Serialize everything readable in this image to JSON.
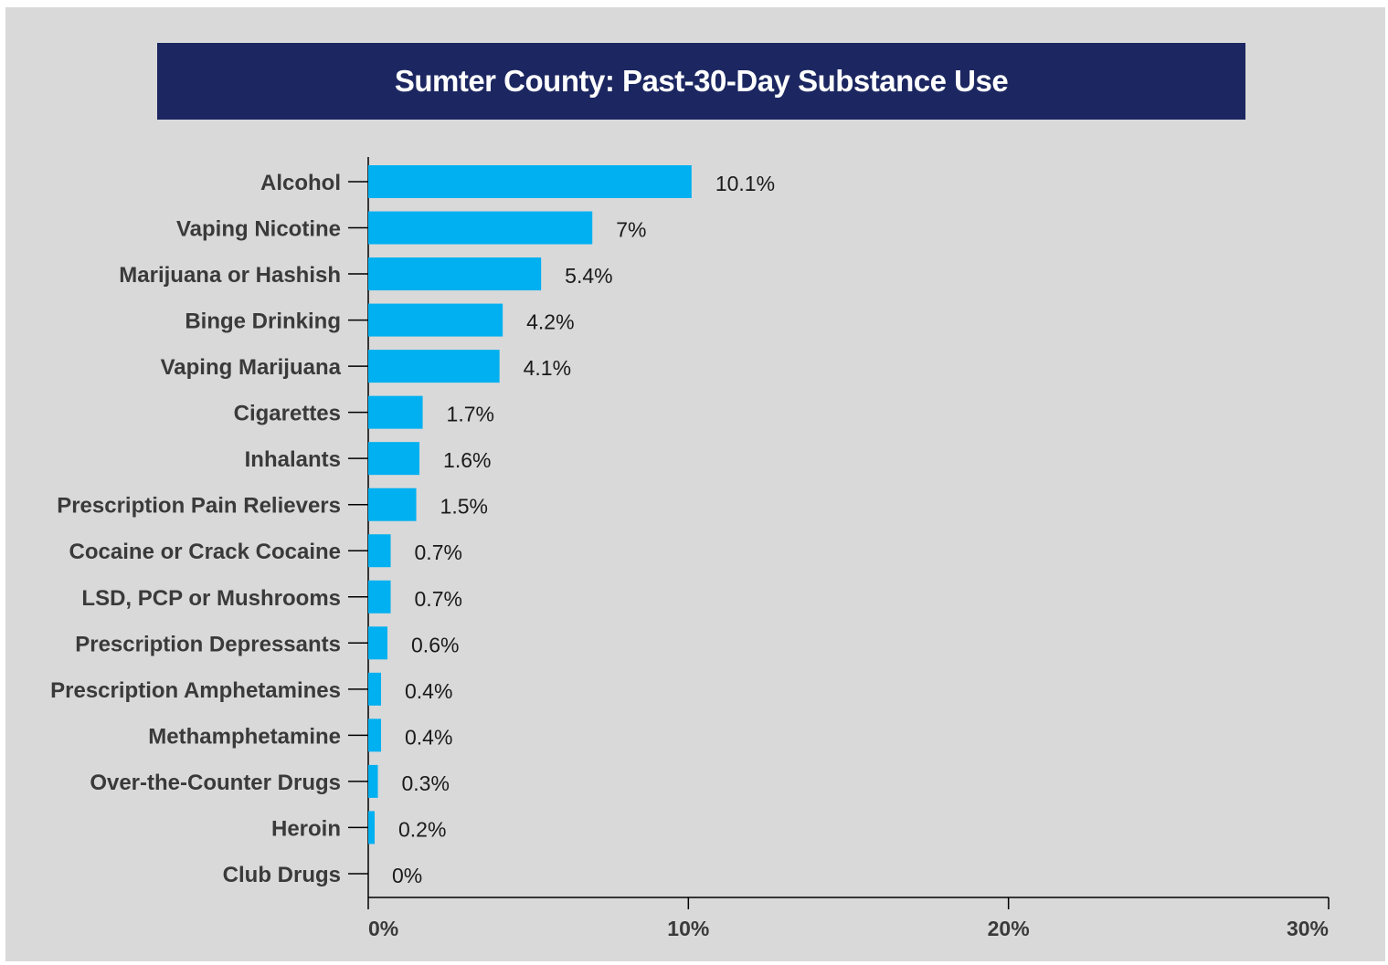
{
  "chart_data": {
    "type": "bar",
    "orientation": "horizontal",
    "title": "Sumter County: Past-30-Day Substance Use",
    "categories": [
      "Alcohol",
      "Vaping Nicotine",
      "Marijuana or Hashish",
      "Binge Drinking",
      "Vaping Marijuana",
      "Cigarettes",
      "Inhalants",
      "Prescription Pain Relievers",
      "Cocaine or Crack Cocaine",
      "LSD, PCP or Mushrooms",
      "Prescription Depressants",
      "Prescription Amphetamines",
      "Methamphetamine",
      "Over-the-Counter Drugs",
      "Heroin",
      "Club Drugs"
    ],
    "values": [
      10.1,
      7,
      5.4,
      4.2,
      4.1,
      1.7,
      1.6,
      1.5,
      0.7,
      0.7,
      0.6,
      0.4,
      0.4,
      0.3,
      0.2,
      0
    ],
    "value_labels": [
      "10.1%",
      "7%",
      "5.4%",
      "4.2%",
      "4.1%",
      "1.7%",
      "1.6%",
      "1.5%",
      "0.7%",
      "0.7%",
      "0.6%",
      "0.4%",
      "0.4%",
      "0.3%",
      "0.2%",
      "0%"
    ],
    "xlim": [
      0,
      30
    ],
    "x_ticks": [
      0,
      10,
      20,
      30
    ],
    "x_tick_labels": [
      "0%",
      "10%",
      "20%",
      "30%"
    ],
    "xlabel": "",
    "ylabel": "",
    "grid": false,
    "colors": {
      "bar": "#00b0f0",
      "title_background": "#1c2761",
      "background": "#d9d9d9"
    }
  }
}
